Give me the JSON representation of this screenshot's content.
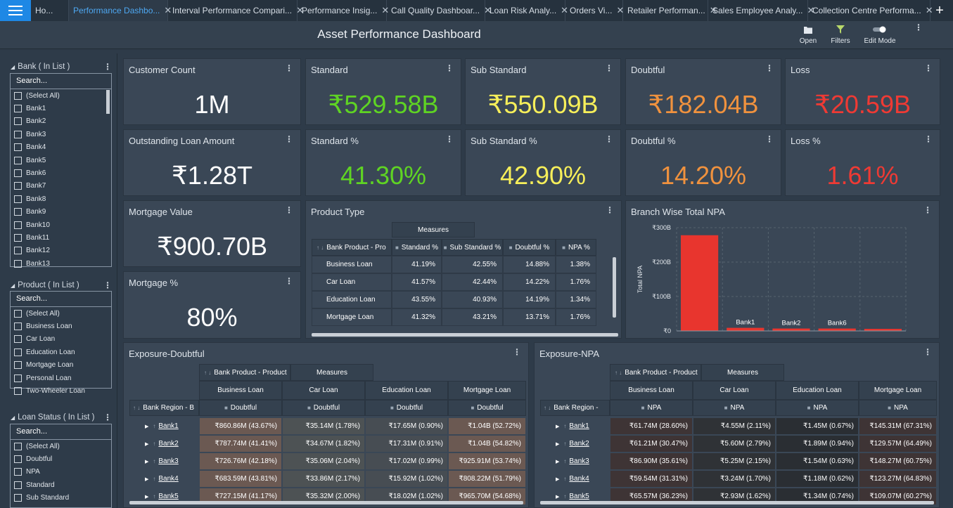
{
  "tabs": [
    {
      "label": "Ho...",
      "active": false,
      "close": false,
      "w": 54
    },
    {
      "label": "Performance Dashbo...",
      "active": true,
      "close": true,
      "w": 141
    },
    {
      "label": "Interval Performance Compari...",
      "active": false,
      "close": true,
      "w": 184
    },
    {
      "label": "Performance Insig...",
      "active": false,
      "close": true,
      "w": 127
    },
    {
      "label": "Call Quality Dashboar...",
      "active": false,
      "close": true,
      "w": 140
    },
    {
      "label": "Loan Risk Analy...",
      "active": false,
      "close": true,
      "w": 114
    },
    {
      "label": "Orders Vi...",
      "active": false,
      "close": true,
      "w": 82
    },
    {
      "label": "Retailer Performan...",
      "active": false,
      "close": true,
      "w": 121
    },
    {
      "label": "Sales Employee Analy...",
      "active": false,
      "close": true,
      "w": 142
    },
    {
      "label": "Collection Centre Performa...",
      "active": false,
      "close": true,
      "w": 174
    }
  ],
  "tab_close": "✕",
  "tab_add": "+",
  "header": {
    "title": "Asset Performance Dashboard",
    "open": "Open",
    "filters": "Filters",
    "edit_mode": "Edit Mode"
  },
  "kebab": "⋮",
  "filters": [
    {
      "title": "Bank ( In List )",
      "search": "Search...",
      "options": [
        "(Select All)",
        "Bank1",
        "Bank2",
        "Bank3",
        "Bank4",
        "Bank5",
        "Bank6",
        "Bank7",
        "Bank8",
        "Bank9",
        "Bank10",
        "Bank11",
        "Bank12",
        "Bank13"
      ]
    },
    {
      "title": "Product ( In List )",
      "search": "Search...",
      "options": [
        "(Select All)",
        "Business Loan",
        "Car Loan",
        "Education Loan",
        "Mortgage Loan",
        "Personal Loan",
        "Two-Wheeler Loan"
      ]
    },
    {
      "title": "Loan Status ( In List )",
      "search": "Search...",
      "options": [
        "(Select All)",
        "Doubtful",
        "NPA",
        "Standard",
        "Sub Standard"
      ]
    }
  ],
  "kpis": [
    {
      "title": "Customer Count",
      "value": "1M",
      "color": "#ffffff"
    },
    {
      "title": "Standard",
      "value": "₹529.58B",
      "color": "#5fd423"
    },
    {
      "title": "Sub Standard",
      "value": "₹550.09B",
      "color": "#f7ef5a"
    },
    {
      "title": "Doubtful",
      "value": "₹182.04B",
      "color": "#f0923e"
    },
    {
      "title": "Loss",
      "value": "₹20.59B",
      "color": "#ef3a34"
    },
    {
      "title": "Outstanding Loan Amount",
      "value": "₹1.28T",
      "color": "#ffffff"
    },
    {
      "title": "Standard %",
      "value": "41.30%",
      "color": "#5fd423"
    },
    {
      "title": "Sub Standard %",
      "value": "42.90%",
      "color": "#f7ef5a"
    },
    {
      "title": "Doubtful %",
      "value": "14.20%",
      "color": "#f0923e"
    },
    {
      "title": "Loss %",
      "value": "1.61%",
      "color": "#ef3a34"
    },
    {
      "title": "Mortgage Value",
      "value": "₹900.70B",
      "color": "#ffffff"
    },
    {
      "title": "Mortgage %",
      "value": "80%",
      "color": "#ffffff"
    }
  ],
  "product_type": {
    "title": "Product Type",
    "measures": "Measures",
    "columns": [
      "Bank Product - Pro",
      "Standard %",
      "Sub Standard %",
      "Doubtful %",
      "NPA %"
    ],
    "rows": [
      [
        "Business Loan",
        "41.19%",
        "42.55%",
        "14.88%",
        "1.38%"
      ],
      [
        "Car Loan",
        "41.57%",
        "42.44%",
        "14.22%",
        "1.76%"
      ],
      [
        "Education Loan",
        "43.55%",
        "40.93%",
        "14.19%",
        "1.34%"
      ],
      [
        "Mortgage Loan",
        "41.32%",
        "43.21%",
        "13.71%",
        "1.76%"
      ]
    ]
  },
  "chart_data": {
    "type": "bar",
    "title": "Branch Wise Total NPA",
    "ylabel": "Total NPA",
    "y_ticks": [
      "₹0",
      "₹100B",
      "₹200B",
      "₹300B"
    ],
    "ylim": [
      0,
      300
    ],
    "categories": [
      "",
      "Bank1",
      "Bank2",
      "Bank6",
      ""
    ],
    "values": [
      278,
      9,
      7,
      7,
      6
    ],
    "bar_color": "#e8352e",
    "grid": true
  },
  "exposure_doubtful": {
    "title": "Exposure-Doubtful",
    "product_hdr": "Bank Product - Product",
    "measures": "Measures",
    "region_hdr": "Bank Region - B",
    "products": [
      "Business Loan",
      "Car Loan",
      "Education Loan",
      "Mortgage Loan"
    ],
    "measure": "Doubtful",
    "rows": [
      {
        "bank": "Bank1",
        "vals": [
          "₹860.86M  (43.67%)",
          "₹35.14M  (1.78%)",
          "₹17.65M  (0.90%)",
          "₹1.04B  (52.72%)"
        ]
      },
      {
        "bank": "Bank2",
        "vals": [
          "₹787.74M  (41.41%)",
          "₹34.67M  (1.82%)",
          "₹17.31M  (0.91%)",
          "₹1.04B  (54.82%)"
        ]
      },
      {
        "bank": "Bank3",
        "vals": [
          "₹726.76M  (42.18%)",
          "₹35.06M  (2.04%)",
          "₹17.02M  (0.99%)",
          "₹925.91M  (53.74%)"
        ]
      },
      {
        "bank": "Bank4",
        "vals": [
          "₹683.59M  (43.81%)",
          "₹33.86M  (2.17%)",
          "₹15.92M  (1.02%)",
          "₹808.22M  (51.79%)"
        ]
      },
      {
        "bank": "Bank5",
        "vals": [
          "₹727.15M  (41.17%)",
          "₹35.32M  (2.00%)",
          "₹18.02M  (1.02%)",
          "₹965.70M  (54.68%)"
        ]
      }
    ]
  },
  "exposure_npa": {
    "title": "Exposure-NPA",
    "product_hdr": "Bank Product - Product",
    "measures": "Measures",
    "region_hdr": "Bank Region -",
    "products": [
      "Business Loan",
      "Car Loan",
      "Education Loan",
      "Mortgage Loan"
    ],
    "measure": "NPA",
    "rows": [
      {
        "bank": "Bank1",
        "vals": [
          "₹61.74M  (28.60%)",
          "₹4.55M  (2.11%)",
          "₹1.45M  (0.67%)",
          "₹145.31M  (67.31%)"
        ]
      },
      {
        "bank": "Bank2",
        "vals": [
          "₹61.21M  (30.47%)",
          "₹5.60M  (2.79%)",
          "₹1.89M  (0.94%)",
          "₹129.57M  (64.49%)"
        ]
      },
      {
        "bank": "Bank3",
        "vals": [
          "₹86.90M  (35.61%)",
          "₹5.25M  (2.15%)",
          "₹1.54M  (0.63%)",
          "₹148.27M  (60.75%)"
        ]
      },
      {
        "bank": "Bank4",
        "vals": [
          "₹59.54M  (31.31%)",
          "₹3.24M  (1.70%)",
          "₹1.18M  (0.62%)",
          "₹123.27M  (64.83%)"
        ]
      },
      {
        "bank": "Bank5",
        "vals": [
          "₹65.57M  (36.23%)",
          "₹2.93M  (1.62%)",
          "₹1.34M  (0.74%)",
          "₹109.07M  (60.27%)"
        ]
      }
    ]
  }
}
